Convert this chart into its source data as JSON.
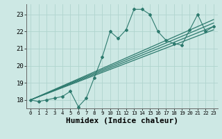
{
  "xlabel": "Humidex (Indice chaleur)",
  "bg_color": "#cde8e4",
  "grid_color": "#b0d4ce",
  "line_color": "#2d7a6e",
  "x_data": [
    0,
    1,
    2,
    3,
    4,
    5,
    6,
    7,
    8,
    9,
    10,
    11,
    12,
    13,
    14,
    15,
    16,
    17,
    18,
    19,
    20,
    21,
    22,
    23
  ],
  "y_main": [
    18.0,
    17.9,
    18.0,
    18.1,
    18.2,
    18.5,
    17.6,
    18.1,
    19.3,
    20.5,
    22.0,
    21.6,
    22.1,
    23.3,
    23.3,
    23.0,
    22.0,
    21.5,
    21.3,
    21.2,
    22.1,
    23.0,
    22.0,
    22.3
  ],
  "straight_lines": [
    [
      18.0,
      22.1
    ],
    [
      18.0,
      22.3
    ],
    [
      18.0,
      22.5
    ],
    [
      18.0,
      22.7
    ]
  ],
  "xlim": [
    -0.5,
    23.5
  ],
  "ylim": [
    17.5,
    23.6
  ],
  "yticks": [
    18,
    19,
    20,
    21,
    22,
    23
  ],
  "xticks": [
    0,
    1,
    2,
    3,
    4,
    5,
    6,
    7,
    8,
    9,
    10,
    11,
    12,
    13,
    14,
    15,
    16,
    17,
    18,
    19,
    20,
    21,
    22,
    23
  ],
  "tick_fontsize": 6,
  "xlabel_fontsize": 8
}
